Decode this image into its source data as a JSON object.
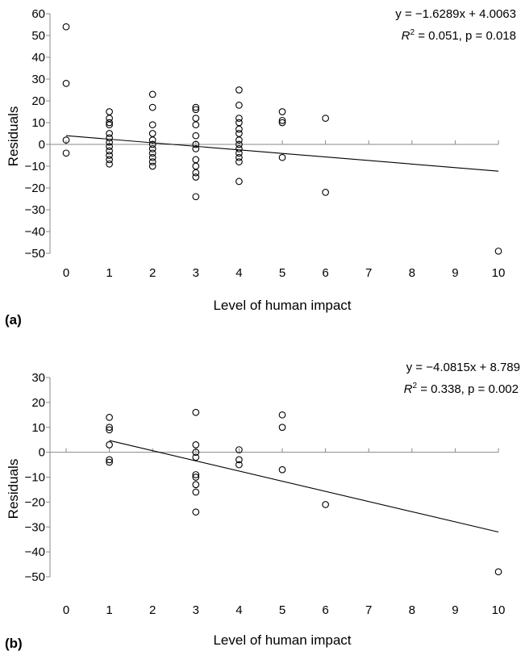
{
  "colors": {
    "points": "#000000",
    "axes": "#888888",
    "background": "#ffffff"
  },
  "chart_data": [
    {
      "type": "scatter",
      "panel_label": "(a)",
      "xlabel": "Level of human impact",
      "ylabel": "Residuals",
      "x_ticks": [
        0,
        1,
        2,
        3,
        4,
        5,
        6,
        7,
        8,
        9,
        10
      ],
      "y_ticks": [
        60,
        50,
        40,
        30,
        20,
        10,
        0,
        -10,
        -20,
        -30,
        -40,
        -50
      ],
      "ylim": [
        -50,
        60
      ],
      "equation": {
        "line1": "y = −1.6289x + 4.0063",
        "line2_prefix": "R",
        "line2_sup": "2",
        "line2_rest": " = 0.051, p = 0.018"
      },
      "fit": {
        "slope": -1.6289,
        "intercept": 4.0063,
        "x_from": 0,
        "x_to": 10
      },
      "points": [
        [
          0,
          54
        ],
        [
          0,
          28
        ],
        [
          0,
          2
        ],
        [
          0,
          -4
        ],
        [
          1,
          15
        ],
        [
          1,
          12
        ],
        [
          1,
          10
        ],
        [
          1,
          9
        ],
        [
          1,
          5
        ],
        [
          1,
          3
        ],
        [
          1,
          1
        ],
        [
          1,
          -1
        ],
        [
          1,
          -3
        ],
        [
          1,
          -5
        ],
        [
          1,
          -7
        ],
        [
          1,
          -9
        ],
        [
          2,
          23
        ],
        [
          2,
          17
        ],
        [
          2,
          9
        ],
        [
          2,
          5
        ],
        [
          2,
          2
        ],
        [
          2,
          0
        ],
        [
          2,
          -2
        ],
        [
          2,
          -4
        ],
        [
          2,
          -6
        ],
        [
          2,
          -8
        ],
        [
          2,
          -10
        ],
        [
          3,
          17
        ],
        [
          3,
          16
        ],
        [
          3,
          12
        ],
        [
          3,
          9
        ],
        [
          3,
          4
        ],
        [
          3,
          0
        ],
        [
          3,
          -2
        ],
        [
          3,
          -7
        ],
        [
          3,
          -10
        ],
        [
          3,
          -13
        ],
        [
          3,
          -15
        ],
        [
          3,
          -24
        ],
        [
          4,
          25
        ],
        [
          4,
          18
        ],
        [
          4,
          12
        ],
        [
          4,
          10
        ],
        [
          4,
          7
        ],
        [
          4,
          5
        ],
        [
          4,
          2
        ],
        [
          4,
          0
        ],
        [
          4,
          -2
        ],
        [
          4,
          -4
        ],
        [
          4,
          -6
        ],
        [
          4,
          -8
        ],
        [
          4,
          -17
        ],
        [
          5,
          15
        ],
        [
          5,
          11
        ],
        [
          5,
          10
        ],
        [
          5,
          -6
        ],
        [
          6,
          12
        ],
        [
          6,
          -22
        ],
        [
          10,
          -49
        ]
      ]
    },
    {
      "type": "scatter",
      "panel_label": "(b)",
      "xlabel": "Level of human impact",
      "ylabel": "Residuals",
      "x_ticks": [
        0,
        1,
        2,
        3,
        4,
        5,
        6,
        7,
        8,
        9,
        10
      ],
      "y_ticks": [
        30,
        20,
        10,
        0,
        -10,
        -20,
        -30,
        -40,
        -50
      ],
      "ylim": [
        -50,
        30
      ],
      "equation": {
        "line1": "y = −4.0815x + 8.789",
        "line2_prefix": "R",
        "line2_sup": "2",
        "line2_rest": " = 0.338, p = 0.002"
      },
      "fit": {
        "slope": -4.0815,
        "intercept": 8.789,
        "x_from": 1,
        "x_to": 10
      },
      "points": [
        [
          1,
          14
        ],
        [
          1,
          10
        ],
        [
          1,
          9
        ],
        [
          1,
          3
        ],
        [
          1,
          -3
        ],
        [
          1,
          -4
        ],
        [
          3,
          16
        ],
        [
          3,
          3
        ],
        [
          3,
          0
        ],
        [
          3,
          -2
        ],
        [
          3,
          -9
        ],
        [
          3,
          -10
        ],
        [
          3,
          -13
        ],
        [
          3,
          -16
        ],
        [
          3,
          -24
        ],
        [
          4,
          1
        ],
        [
          4,
          -3
        ],
        [
          4,
          -5
        ],
        [
          5,
          15
        ],
        [
          5,
          10
        ],
        [
          5,
          -7
        ],
        [
          6,
          -21
        ],
        [
          10,
          -48
        ]
      ]
    }
  ]
}
